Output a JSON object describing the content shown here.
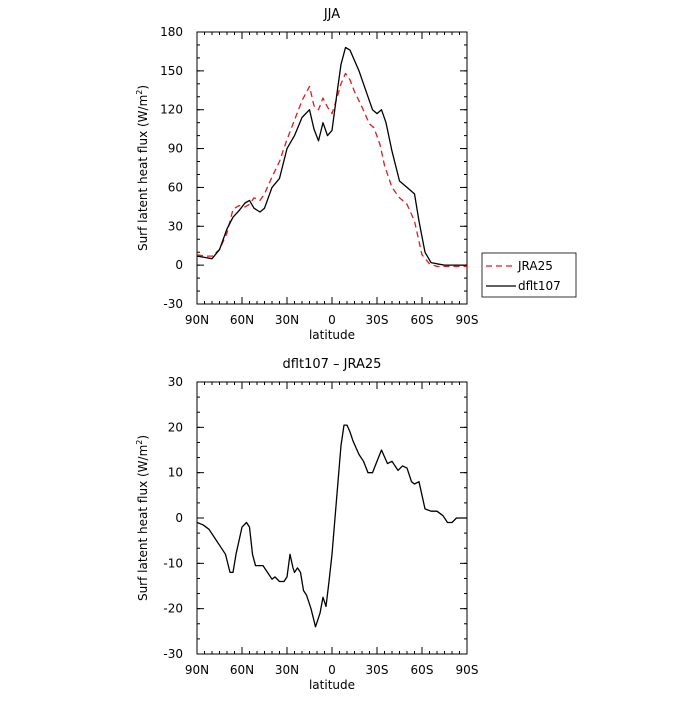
{
  "chart_data": [
    {
      "type": "line",
      "title": "JJA",
      "xlabel": "latitude",
      "ylabel": "Surf latent heat flux (W/m²)",
      "ylabel_main": "Surf latent heat flux (W/m",
      "ylabel_sup": "2",
      "ylabel_close": ")",
      "ylim": [
        -30,
        180
      ],
      "xlim": [
        90,
        -90
      ],
      "yticks": [
        "-30",
        "0",
        "30",
        "60",
        "90",
        "120",
        "150",
        "180"
      ],
      "ytick_values": [
        -30,
        0,
        30,
        60,
        90,
        120,
        150,
        180
      ],
      "xtick_labels": [
        "90N",
        "60N",
        "30N",
        "0",
        "30S",
        "60S",
        "90S"
      ],
      "xtick_values": [
        90,
        60,
        30,
        0,
        -30,
        -60,
        -90
      ],
      "legend_position": "outside-right",
      "series": [
        {
          "name": "JRA25",
          "color": "#e31a1c",
          "dash": "dashed",
          "x": [
            90,
            85,
            80,
            75,
            70,
            66,
            62,
            58,
            55,
            52,
            48,
            45,
            40,
            35,
            30,
            25,
            20,
            15,
            12,
            9,
            6,
            3,
            0,
            -3,
            -6,
            -9,
            -12,
            -15,
            -20,
            -25,
            -28,
            -32,
            -35,
            -40,
            -45,
            -50,
            -55,
            -60,
            -65,
            -70,
            -75,
            -80,
            -85,
            -90
          ],
          "values": [
            8,
            7,
            7,
            12,
            25,
            43,
            46,
            45,
            47,
            52,
            50,
            55,
            68,
            80,
            97,
            112,
            127,
            138,
            123,
            120,
            129,
            122,
            117,
            128,
            140,
            148,
            143,
            134,
            122,
            109,
            106,
            93,
            77,
            60,
            52,
            47,
            34,
            8,
            1,
            -1,
            -1,
            -1,
            -1,
            -1
          ]
        },
        {
          "name": "dflt107",
          "color": "#000000",
          "dash": "solid",
          "x": [
            90,
            85,
            80,
            75,
            70,
            66,
            62,
            58,
            55,
            52,
            48,
            45,
            40,
            35,
            30,
            25,
            20,
            15,
            12,
            9,
            6,
            3,
            0,
            -3,
            -6,
            -9,
            -12,
            -15,
            -18,
            -21,
            -24,
            -27,
            -30,
            -33,
            -36,
            -40,
            -45,
            -50,
            -55,
            -58,
            -62,
            -66,
            -70,
            -75,
            -80,
            -85,
            -90
          ],
          "values": [
            7,
            6,
            5,
            12,
            28,
            37,
            42,
            48,
            50,
            44,
            41,
            44,
            60,
            67,
            90,
            100,
            114,
            120,
            105,
            96,
            110,
            100,
            104,
            130,
            155,
            168,
            166,
            158,
            150,
            140,
            130,
            120,
            117,
            120,
            110,
            88,
            65,
            60,
            55,
            34,
            10,
            2,
            1,
            0,
            0,
            0,
            0
          ]
        }
      ]
    },
    {
      "type": "line",
      "title": "dflt107 – JRA25",
      "xlabel": "latitude",
      "ylabel": "Surf latent heat flux (W/m²)",
      "ylabel_main": "Surf latent heat flux (W/m",
      "ylabel_sup": "2",
      "ylabel_close": ")",
      "ylim": [
        -30,
        30
      ],
      "xlim": [
        90,
        -90
      ],
      "yticks": [
        "-30",
        "-20",
        "-10",
        "0",
        "10",
        "20",
        "30"
      ],
      "ytick_values": [
        -30,
        -20,
        -10,
        0,
        10,
        20,
        30
      ],
      "xtick_labels": [
        "90N",
        "60N",
        "30N",
        "0",
        "30S",
        "60S",
        "90S"
      ],
      "xtick_values": [
        90,
        60,
        30,
        0,
        -30,
        -60,
        -90
      ],
      "series": [
        {
          "name": "",
          "color": "#000000",
          "dash": "solid",
          "x": [
            90,
            86,
            82,
            78,
            75,
            71,
            68,
            66,
            64,
            60,
            57,
            55,
            53,
            51,
            49,
            46,
            43,
            40,
            38,
            35,
            32,
            30,
            28,
            26,
            25,
            23,
            21,
            19,
            17,
            14,
            11,
            8,
            6,
            4,
            2,
            0,
            -2,
            -4,
            -6,
            -8,
            -10,
            -12,
            -14,
            -16,
            -18,
            -21,
            -24,
            -27,
            -30,
            -33,
            -37,
            -40,
            -44,
            -47,
            -50,
            -53,
            -55,
            -58,
            -62,
            -66,
            -70,
            -74,
            -77,
            -80,
            -83,
            -86,
            -90
          ],
          "values": [
            -1,
            -1.5,
            -2.5,
            -4.5,
            -6,
            -8,
            -12,
            -12,
            -8,
            -2,
            -1,
            -2,
            -8,
            -10.5,
            -10.5,
            -10.5,
            -12,
            -13.5,
            -13,
            -14,
            -14,
            -13,
            -8,
            -11,
            -12,
            -11,
            -12,
            -16,
            -17,
            -20,
            -24,
            -21,
            -17.5,
            -19.5,
            -14,
            -8,
            0,
            8,
            16,
            20.5,
            20.5,
            19,
            17,
            15.5,
            14,
            12.5,
            10,
            10,
            12.5,
            15,
            12,
            12.5,
            10.5,
            11.5,
            11,
            8,
            7.5,
            8,
            2,
            1.5,
            1.5,
            0.5,
            -1,
            -1,
            0,
            0,
            0
          ]
        }
      ]
    }
  ]
}
